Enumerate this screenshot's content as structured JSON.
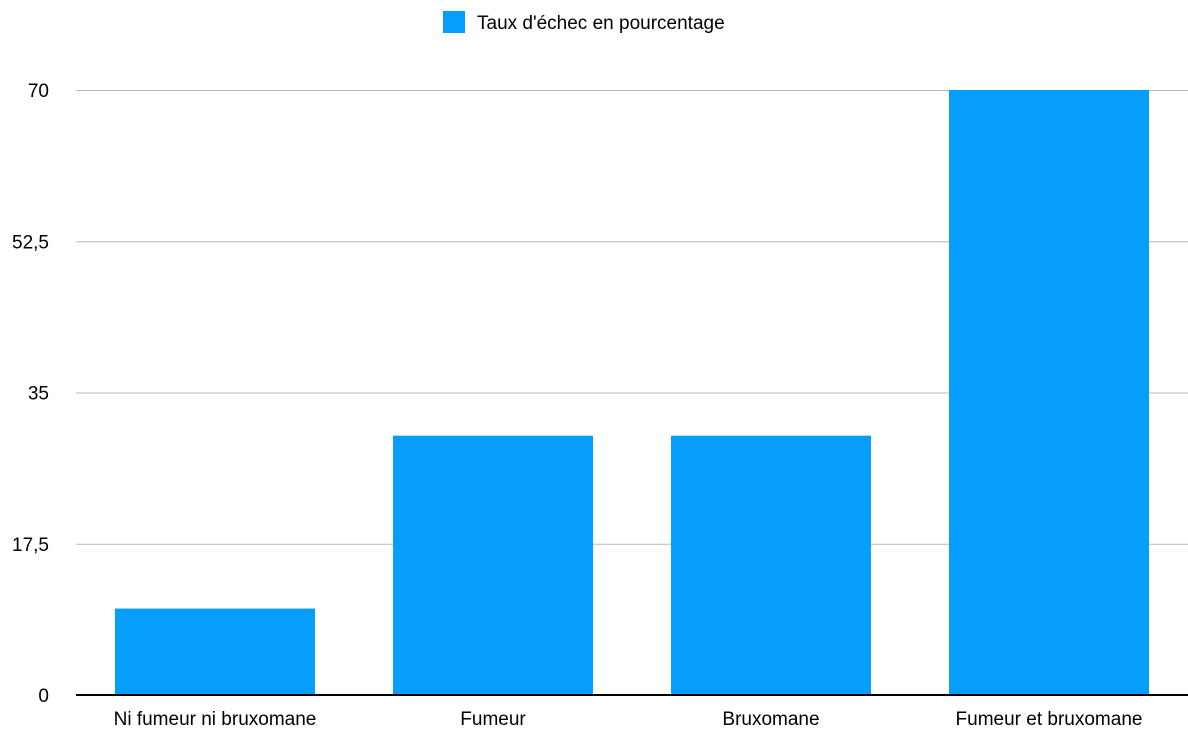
{
  "chart_data": {
    "type": "bar",
    "categories": [
      "Ni fumeur ni bruxomane",
      "Fumeur",
      "Bruxomane",
      "Fumeur et bruxomane"
    ],
    "series": [
      {
        "name": "Taux d'échec en pourcentage",
        "color": "#069efa",
        "values": [
          10,
          30,
          30,
          70
        ]
      }
    ],
    "title": "",
    "xlabel": "",
    "ylabel": "",
    "ylim": [
      0,
      70
    ],
    "yticks": [
      "0",
      "17,5",
      "35",
      "52,5",
      "70"
    ],
    "ytick_values": [
      0,
      17.5,
      35,
      52.5,
      70
    ],
    "grid": true,
    "legend_position": "top-center"
  }
}
